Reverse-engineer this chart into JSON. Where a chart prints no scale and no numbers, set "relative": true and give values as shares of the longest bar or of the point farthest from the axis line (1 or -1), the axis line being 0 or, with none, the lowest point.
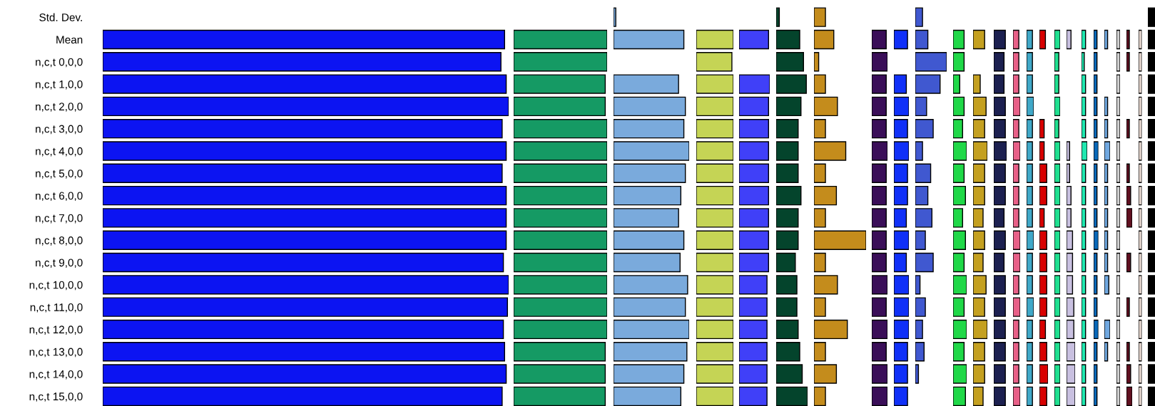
{
  "chart_data": [
    {
      "type": "bar",
      "orientation": "horizontal",
      "relative": true,
      "tick_labels": "y",
      "color": "#0c14f2",
      "categories": [
        "Std. Dev.",
        "Mean",
        "n,c,t 0,0,0",
        "n,c,t 1,0,0",
        "n,c,t 2,0,0",
        "n,c,t 3,0,0",
        "n,c,t 4,0,0",
        "n,c,t 5,0,0",
        "n,c,t 6,0,0",
        "n,c,t 7,0,0",
        "n,c,t 8,0,0",
        "n,c,t 9,0,0",
        "n,c,t 10,0,0",
        "n,c,t 11,0,0",
        "n,c,t 12,0,0",
        "n,c,t 13,0,0",
        "n,c,t 14,0,0",
        "n,c,t 15,0,0"
      ],
      "values": [
        null,
        0.99,
        0.981,
        0.994,
        1,
        0.984,
        0.994,
        0.984,
        0.994,
        0.994,
        0.994,
        0.987,
        1,
        0.997,
        0.987,
        0.99,
        0.994,
        0.984
      ]
    },
    {
      "type": "bar",
      "orientation": "horizontal",
      "relative": true,
      "tick_labels": false,
      "color": "#159a64",
      "categories": [
        null,
        null,
        null,
        null,
        null,
        null,
        null,
        null,
        null,
        null,
        null,
        null,
        null,
        null,
        null,
        null,
        null,
        null
      ],
      "values": [
        null,
        1,
        1,
        0.98,
        0.98,
        1,
        1,
        1,
        1,
        1,
        1,
        1,
        1,
        1,
        1,
        0.98,
        0.98,
        0.98
      ]
    },
    {
      "type": "bar",
      "orientation": "horizontal",
      "relative": true,
      "tick_labels": false,
      "color": "#7aaadc",
      "categories": [
        null,
        null,
        null,
        null,
        null,
        null,
        null,
        null,
        null,
        null,
        null,
        null,
        null,
        null,
        null,
        null,
        null,
        null
      ],
      "values": [
        0.03,
        0.93,
        null,
        0.86,
        0.95,
        0.93,
        1,
        0.95,
        0.89,
        0.86,
        0.93,
        0.88,
        0.98,
        0.95,
        1,
        0.97,
        0.93,
        0.89
      ]
    },
    {
      "type": "bar",
      "orientation": "horizontal",
      "relative": true,
      "tick_labels": false,
      "color": "#c5d455",
      "categories": [
        null,
        null,
        null,
        null,
        null,
        null,
        null,
        null,
        null,
        null,
        null,
        null,
        null,
        null,
        null,
        null,
        null,
        null
      ],
      "values": [
        null,
        1,
        0.96,
        1,
        1,
        1,
        1,
        1,
        1,
        1,
        1,
        1,
        1,
        1,
        1,
        1,
        1,
        1
      ]
    },
    {
      "type": "bar",
      "orientation": "horizontal",
      "relative": true,
      "tick_labels": false,
      "color": "#4040f8",
      "categories": [
        null,
        null,
        null,
        null,
        null,
        null,
        null,
        null,
        null,
        null,
        null,
        null,
        null,
        null,
        null,
        null,
        null,
        null
      ],
      "values": [
        null,
        0.96,
        null,
        1,
        0.96,
        0.96,
        0.96,
        0.96,
        0.96,
        0.96,
        0.96,
        0.96,
        0.91,
        0.91,
        0.91,
        0.91,
        0.91,
        0.91
      ]
    },
    {
      "type": "bar",
      "orientation": "horizontal",
      "relative": true,
      "tick_labels": false,
      "color": "#04442c",
      "categories": [
        null,
        null,
        null,
        null,
        null,
        null,
        null,
        null,
        null,
        null,
        null,
        null,
        null,
        null,
        null,
        null,
        null,
        null
      ],
      "values": [
        0.1,
        0.75,
        0.87,
        0.96,
        0.79,
        0.7,
        0.7,
        0.7,
        0.79,
        0.7,
        0.7,
        0.61,
        0.66,
        0.66,
        0.7,
        0.75,
        0.83,
        1
      ]
    },
    {
      "type": "bar",
      "orientation": "horizontal",
      "relative": true,
      "tick_labels": false,
      "color": "#c48c1c",
      "categories": [
        null,
        null,
        null,
        null,
        null,
        null,
        null,
        null,
        null,
        null,
        null,
        null,
        null,
        null,
        null,
        null,
        null,
        null
      ],
      "values": [
        0.22,
        0.38,
        0.09,
        0.22,
        0.45,
        0.22,
        0.61,
        0.22,
        0.43,
        0.22,
        1,
        0.22,
        0.45,
        0.22,
        0.64,
        0.22,
        0.43,
        0.22
      ]
    },
    {
      "type": "bar",
      "orientation": "horizontal",
      "relative": true,
      "tick_labels": false,
      "color": "#3a0e58",
      "categories": [
        null,
        null,
        null,
        null,
        null,
        null,
        null,
        null,
        null,
        null,
        null,
        null,
        null,
        null,
        null,
        null,
        null,
        null
      ],
      "values": [
        null,
        0.92,
        1,
        0.92,
        0.92,
        0.92,
        1,
        0.92,
        0.92,
        0.92,
        0.92,
        0.92,
        1,
        0.92,
        1,
        0.92,
        1,
        1
      ]
    },
    {
      "type": "bar",
      "orientation": "horizontal",
      "relative": true,
      "tick_labels": false,
      "color": "#1030f8",
      "categories": [
        null,
        null,
        null,
        null,
        null,
        null,
        null,
        null,
        null,
        null,
        null,
        null,
        null,
        null,
        null,
        null,
        null,
        null
      ],
      "values": [
        null,
        0.91,
        null,
        0.83,
        1,
        0.91,
        1,
        0.91,
        0.91,
        0.83,
        1,
        0.83,
        1,
        1,
        1,
        0.91,
        0.91,
        0.91
      ]
    },
    {
      "type": "bar",
      "orientation": "horizontal",
      "relative": true,
      "tick_labels": false,
      "color": "#4058d0",
      "categories": [
        null,
        null,
        null,
        null,
        null,
        null,
        null,
        null,
        null,
        null,
        null,
        null,
        null,
        null,
        null,
        null,
        null,
        null
      ],
      "values": [
        0.23,
        0.4,
        1,
        0.79,
        0.36,
        0.57,
        0.23,
        0.49,
        0.4,
        0.53,
        0.32,
        0.57,
        0.15,
        0.32,
        0.23,
        0.28,
        0.1,
        null
      ]
    },
    {
      "type": "bar",
      "orientation": "horizontal",
      "relative": true,
      "tick_labels": false,
      "color": "#20d848",
      "categories": [
        null,
        null,
        null,
        null,
        null,
        null,
        null,
        null,
        null,
        null,
        null,
        null,
        null,
        null,
        null,
        null,
        null,
        null
      ],
      "values": [
        null,
        0.81,
        0.81,
        0.49,
        0.81,
        0.7,
        1,
        0.81,
        0.91,
        0.7,
        0.91,
        0.81,
        1,
        0.81,
        1,
        0.81,
        1,
        0.91
      ]
    },
    {
      "type": "bar",
      "orientation": "horizontal",
      "relative": true,
      "tick_labels": false,
      "color": "#c4a020",
      "categories": [
        null,
        null,
        null,
        null,
        null,
        null,
        null,
        null,
        null,
        null,
        null,
        null,
        null,
        null,
        null,
        null,
        null,
        null
      ],
      "values": [
        null,
        0.81,
        null,
        0.5,
        0.91,
        0.81,
        1,
        0.81,
        0.81,
        0.7,
        0.81,
        0.7,
        0.91,
        0.81,
        1,
        0.81,
        0.81,
        0.7
      ]
    },
    {
      "type": "bar",
      "orientation": "horizontal",
      "relative": true,
      "tick_labels": false,
      "color": "#1c2050",
      "categories": [
        null,
        null,
        null,
        null,
        null,
        null,
        null,
        null,
        null,
        null,
        null,
        null,
        null,
        null,
        null,
        null,
        null,
        null
      ],
      "values": [
        null,
        0.9,
        0.8,
        0.8,
        0.9,
        0.9,
        1,
        0.9,
        0.9,
        0.8,
        0.9,
        0.8,
        0.9,
        0.9,
        0.9,
        0.9,
        0.9,
        0.9
      ]
    },
    {
      "type": "bar",
      "orientation": "horizontal",
      "relative": true,
      "tick_labels": false,
      "color": "#e86088",
      "categories": [
        null,
        null,
        null,
        null,
        null,
        null,
        null,
        null,
        null,
        null,
        null,
        null,
        null,
        null,
        null,
        null,
        null,
        null
      ],
      "values": [
        null,
        0.81,
        0.81,
        0.81,
        1,
        0.81,
        1,
        0.81,
        0.81,
        0.81,
        1,
        1,
        0.81,
        1,
        0.81,
        0.81,
        0.81,
        1
      ]
    },
    {
      "type": "bar",
      "orientation": "horizontal",
      "relative": true,
      "tick_labels": false,
      "color": "#40a8c8",
      "categories": [
        null,
        null,
        null,
        null,
        null,
        null,
        null,
        null,
        null,
        null,
        null,
        null,
        null,
        null,
        null,
        null,
        null,
        null
      ],
      "values": [
        null,
        0.82,
        0.82,
        0.82,
        1,
        0.82,
        0.82,
        0.82,
        0.82,
        0.82,
        1,
        0.82,
        0.82,
        1,
        0.82,
        0.82,
        0.82,
        0.82
      ]
    },
    {
      "type": "bar",
      "orientation": "horizontal",
      "relative": true,
      "tick_labels": false,
      "color": "#d80000",
      "categories": [
        null,
        null,
        null,
        null,
        null,
        null,
        null,
        null,
        null,
        null,
        null,
        null,
        null,
        null,
        null,
        null,
        null,
        null
      ],
      "values": [
        null,
        0.7,
        null,
        null,
        null,
        0.55,
        0.55,
        0.85,
        0.85,
        0.55,
        0.85,
        0.85,
        0.85,
        0.85,
        0.7,
        0.85,
        1,
        0.85
      ]
    },
    {
      "type": "bar",
      "orientation": "horizontal",
      "relative": true,
      "tick_labels": false,
      "color": "#20e090",
      "categories": [
        null,
        null,
        null,
        null,
        null,
        null,
        null,
        null,
        null,
        null,
        null,
        null,
        null,
        null,
        null,
        null,
        null,
        null
      ],
      "values": [
        null,
        1,
        0.77,
        0.77,
        1,
        0.77,
        1,
        1,
        1,
        1,
        1,
        1,
        1,
        1,
        1,
        1,
        1,
        1
      ]
    },
    {
      "type": "bar",
      "orientation": "horizontal",
      "relative": true,
      "tick_labels": false,
      "color": "#c8c0e0",
      "categories": [
        null,
        null,
        null,
        null,
        null,
        null,
        null,
        null,
        null,
        null,
        null,
        null,
        null,
        null,
        null,
        null,
        null,
        null
      ],
      "values": [
        null,
        0.52,
        null,
        null,
        null,
        null,
        0.36,
        0.36,
        0.52,
        0.52,
        0.7,
        0.7,
        0.7,
        0.85,
        0.85,
        1,
        1,
        1
      ]
    },
    {
      "type": "bar",
      "orientation": "horizontal",
      "relative": true,
      "tick_labels": false,
      "color": "#20e8b0",
      "categories": [
        null,
        null,
        null,
        null,
        null,
        null,
        null,
        null,
        null,
        null,
        null,
        null,
        null,
        null,
        null,
        null,
        null,
        null
      ],
      "values": [
        null,
        0.71,
        0.48,
        0.71,
        0.71,
        0.71,
        1,
        0.71,
        0.71,
        0.71,
        0.71,
        0.71,
        0.71,
        0.71,
        0.71,
        0.71,
        0.71,
        0.71
      ]
    },
    {
      "type": "bar",
      "orientation": "horizontal",
      "relative": true,
      "tick_labels": false,
      "color": "#0868b8",
      "categories": [
        null,
        null,
        null,
        null,
        null,
        null,
        null,
        null,
        null,
        null,
        null,
        null,
        null,
        null,
        null,
        null,
        null,
        null
      ],
      "values": [
        null,
        0.72,
        0.72,
        0.72,
        0.72,
        0.72,
        1,
        0.72,
        0.72,
        0.72,
        1,
        0.72,
        0.72,
        0.72,
        1,
        0.72,
        0.72,
        0.72
      ]
    },
    {
      "type": "bar",
      "orientation": "horizontal",
      "relative": true,
      "tick_labels": false,
      "color": "#70a8e0",
      "categories": [
        null,
        null,
        null,
        null,
        null,
        null,
        null,
        null,
        null,
        null,
        null,
        null,
        null,
        null,
        null,
        null,
        null,
        null
      ],
      "values": [
        null,
        0.57,
        null,
        null,
        0.57,
        0.57,
        1,
        0.57,
        0.57,
        0.57,
        0.57,
        0.57,
        0.78,
        null,
        1,
        0.57,
        null,
        null
      ]
    },
    {
      "type": "bar",
      "orientation": "horizontal",
      "relative": true,
      "tick_labels": false,
      "color": "#d0d0d0",
      "categories": [
        null,
        null,
        null,
        null,
        null,
        null,
        null,
        null,
        null,
        null,
        null,
        null,
        null,
        null,
        null,
        null,
        null,
        null
      ],
      "values": [
        null,
        1,
        1,
        1,
        1,
        1,
        1,
        1,
        1,
        1,
        1,
        1,
        1,
        1,
        1,
        1,
        1,
        1
      ]
    },
    {
      "type": "bar",
      "orientation": "horizontal",
      "relative": true,
      "tick_labels": false,
      "color": "#601020",
      "categories": [
        null,
        null,
        null,
        null,
        null,
        null,
        null,
        null,
        null,
        null,
        null,
        null,
        null,
        null,
        null,
        null,
        null,
        null
      ],
      "values": [
        null,
        0.5,
        0.5,
        null,
        null,
        0.5,
        null,
        0.5,
        0.73,
        1,
        null,
        0.73,
        null,
        0.5,
        null,
        0.5,
        0.73,
        1
      ]
    },
    {
      "type": "bar",
      "orientation": "horizontal",
      "relative": true,
      "tick_labels": false,
      "color": "#f0e0d8",
      "categories": [
        null,
        null,
        null,
        null,
        null,
        null,
        null,
        null,
        null,
        null,
        null,
        null,
        null,
        null,
        null,
        null,
        null,
        null
      ],
      "values": [
        null,
        1,
        1,
        1,
        1,
        1,
        1,
        1,
        1,
        1,
        1,
        1,
        1,
        1,
        1,
        1,
        1,
        1
      ]
    },
    {
      "type": "bar",
      "orientation": "horizontal",
      "relative": true,
      "tick_labels": false,
      "color": "#000000",
      "categories": [
        null,
        null,
        null,
        null,
        null,
        null,
        null,
        null,
        null,
        null,
        null,
        null,
        null,
        null,
        null,
        null,
        null,
        null
      ],
      "values": [
        1,
        1,
        1,
        1,
        1,
        1,
        1,
        1,
        1,
        1,
        1,
        1,
        1,
        1,
        1,
        1,
        1,
        1
      ]
    }
  ]
}
